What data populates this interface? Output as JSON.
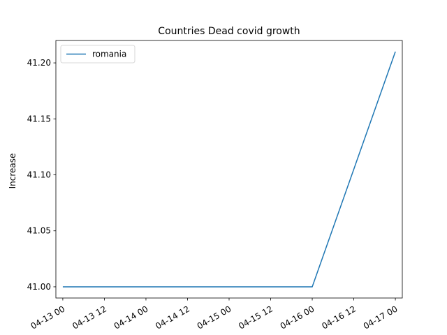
{
  "chart_data": {
    "type": "line",
    "title": "Countries Dead covid growth",
    "xlabel": "",
    "ylabel": "Increase",
    "x_tick_labels": [
      "04-13 00",
      "04-13 12",
      "04-14 00",
      "04-14 12",
      "04-15 00",
      "04-15 12",
      "04-16 00",
      "04-16 12",
      "04-17 00"
    ],
    "y_ticks": [
      41.0,
      41.05,
      41.1,
      41.15,
      41.2
    ],
    "y_tick_labels": [
      "41.00",
      "41.05",
      "41.10",
      "41.15",
      "41.20"
    ],
    "ylim": [
      40.99,
      41.22
    ],
    "xlim": [
      "2020-04-12 22:00",
      "2020-04-17 02:00"
    ],
    "grid": false,
    "legend": "upper-left",
    "series": [
      {
        "name": "romania",
        "color": "#1f77b4",
        "x": [
          "2020-04-13 00:00",
          "2020-04-14 00:00",
          "2020-04-15 00:00",
          "2020-04-16 00:00",
          "2020-04-17 00:00"
        ],
        "y": [
          41.0,
          41.0,
          41.0,
          41.0,
          41.21
        ]
      }
    ]
  }
}
